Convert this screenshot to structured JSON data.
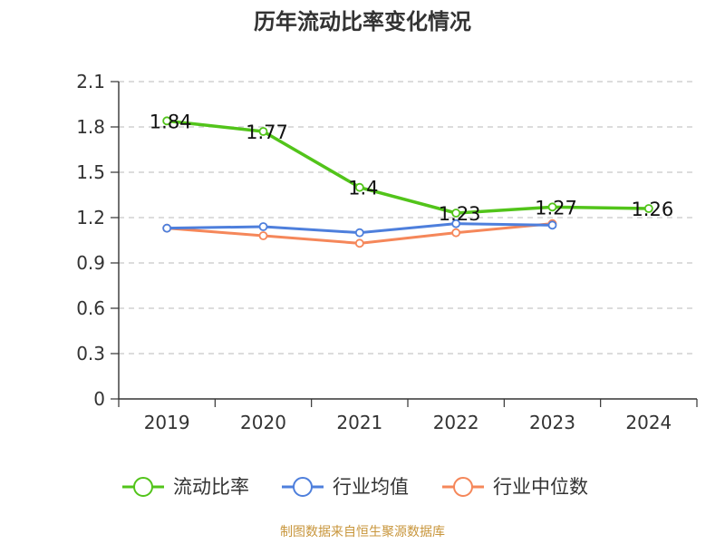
{
  "chart_data": {
    "type": "line",
    "title": "历年流动比率变化情况",
    "categories": [
      "2019",
      "2020",
      "2021",
      "2022",
      "2023",
      "2024"
    ],
    "ylim": [
      0,
      2.1
    ],
    "yticks": [
      "0",
      "0.3",
      "0.6",
      "0.9",
      "1.2",
      "1.5",
      "1.8",
      "2.1"
    ],
    "grid": true,
    "legend_position": "bottom",
    "series": [
      {
        "name": "流动比率",
        "color": "#52c41a",
        "values": [
          1.84,
          1.77,
          1.4,
          1.23,
          1.27,
          1.26
        ],
        "labels": [
          "1.84",
          "1.77",
          "1.4",
          "1.23",
          "1.27",
          "1.26"
        ]
      },
      {
        "name": "行业均值",
        "color": "#4e7fdc",
        "values": [
          1.13,
          1.14,
          1.1,
          1.16,
          1.15,
          null
        ]
      },
      {
        "name": "行业中位数",
        "color": "#f5875a",
        "values": [
          1.13,
          1.08,
          1.03,
          1.1,
          1.16,
          null
        ]
      }
    ],
    "source": "制图数据来自恒生聚源数据库"
  }
}
